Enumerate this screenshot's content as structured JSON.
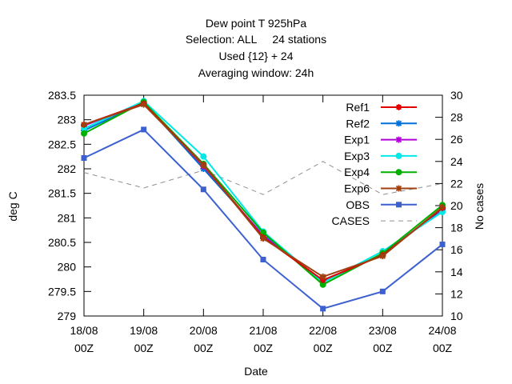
{
  "chart_data": {
    "type": "line",
    "title_lines": [
      "Dew point T 925hPa",
      "Selection: ALL     24 stations",
      "Used {12} + 24",
      "Averaging window: 24h"
    ],
    "xlabel": "Date",
    "ylabel": "deg C",
    "y2label": "No cases",
    "x": [
      [
        "18/08",
        "00Z"
      ],
      [
        "19/08",
        "00Z"
      ],
      [
        "20/08",
        "00Z"
      ],
      [
        "21/08",
        "00Z"
      ],
      [
        "22/08",
        "00Z"
      ],
      [
        "23/08",
        "00Z"
      ],
      [
        "24/08",
        "00Z"
      ]
    ],
    "ylim": [
      279,
      283.5
    ],
    "yticks": [
      279,
      279.5,
      280,
      280.5,
      281,
      281.5,
      282,
      282.5,
      283,
      283.5
    ],
    "y2lim": [
      10,
      30
    ],
    "y2ticks": [
      10,
      12,
      14,
      16,
      18,
      20,
      22,
      24,
      26,
      28,
      30
    ],
    "grid": false,
    "legend_position": "top-right",
    "series": [
      {
        "name": "Ref1",
        "color": "#e00000",
        "marker": "plus",
        "axis": "left",
        "dashed": false,
        "values": [
          282.9,
          283.33,
          282.08,
          280.6,
          279.73,
          280.24,
          281.2
        ]
      },
      {
        "name": "Ref2",
        "color": "#0070d8",
        "marker": "asterisk",
        "axis": "left",
        "dashed": false,
        "values": [
          282.78,
          283.35,
          282.0,
          280.65,
          279.7,
          280.26,
          281.17
        ]
      },
      {
        "name": "Exp1",
        "color": "#b000d8",
        "marker": "asterisk",
        "axis": "left",
        "dashed": false,
        "values": [
          282.88,
          283.34,
          282.05,
          280.63,
          279.72,
          280.25,
          281.19
        ]
      },
      {
        "name": "Exp3",
        "color": "#00e8e8",
        "marker": "dot",
        "axis": "left",
        "dashed": false,
        "values": [
          282.82,
          283.38,
          282.25,
          280.72,
          279.68,
          280.32,
          281.12
        ]
      },
      {
        "name": "Exp4",
        "color": "#00b000",
        "marker": "dot",
        "axis": "left",
        "dashed": false,
        "values": [
          282.72,
          283.36,
          282.1,
          280.7,
          279.64,
          280.28,
          281.26
        ]
      },
      {
        "name": "Exp6",
        "color": "#a04010",
        "marker": "asterisk",
        "axis": "left",
        "dashed": false,
        "values": [
          282.9,
          283.31,
          282.07,
          280.58,
          279.8,
          280.22,
          281.22
        ]
      },
      {
        "name": "OBS",
        "color": "#3c60d0",
        "marker": "square",
        "axis": "left",
        "dashed": false,
        "values": [
          282.22,
          282.8,
          281.58,
          280.15,
          279.15,
          279.5,
          280.46
        ]
      },
      {
        "name": "CASES",
        "color": "#909090",
        "marker": "none",
        "axis": "right",
        "dashed": true,
        "values": [
          23,
          21.6,
          23.2,
          21,
          24,
          21,
          22
        ]
      }
    ]
  }
}
